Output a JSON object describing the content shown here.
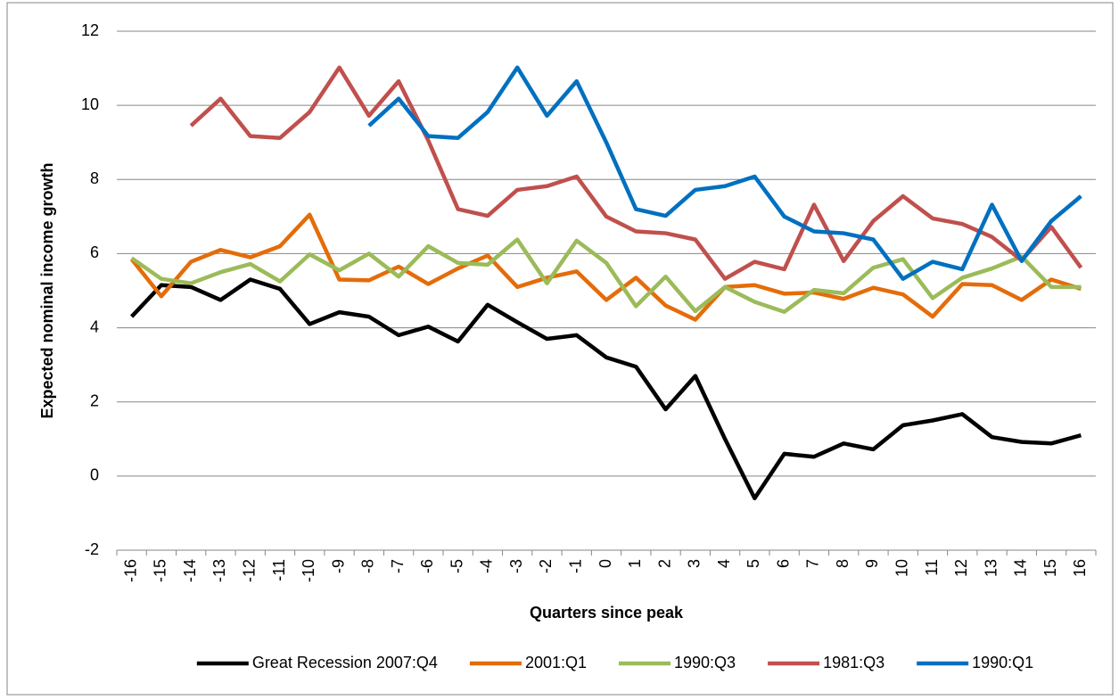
{
  "chart_data": {
    "type": "line",
    "x_label": "Quarters since peak",
    "y_label": "Expected nominal income growth",
    "categories": [
      "-16",
      "-15",
      "-14",
      "-13",
      "-12",
      "-11",
      "-10",
      "-9",
      "-8",
      "-7",
      "-6",
      "-5",
      "-4",
      "-3",
      "-2",
      "-1",
      "0",
      "1",
      "2",
      "3",
      "4",
      "5",
      "6",
      "7",
      "8",
      "9",
      "10",
      "11",
      "12",
      "13",
      "14",
      "15",
      "16"
    ],
    "ylim": [
      -2,
      12
    ],
    "yticks": [
      -2,
      0,
      2,
      4,
      6,
      8,
      10,
      12
    ],
    "grid": true,
    "legend": "bottom",
    "series": [
      {
        "name": "Great Recession 2007:Q4",
        "color": "#000000",
        "values": [
          4.3,
          5.15,
          5.1,
          4.75,
          5.3,
          5.05,
          4.1,
          4.42,
          4.3,
          3.8,
          4.03,
          3.63,
          4.62,
          4.15,
          3.7,
          3.8,
          3.2,
          2.95,
          1.8,
          2.7,
          1.0,
          -0.6,
          0.6,
          0.52,
          0.88,
          0.72,
          1.37,
          1.5,
          1.67,
          1.05,
          0.92,
          0.88,
          1.1
        ]
      },
      {
        "name": "2001:Q1",
        "color": "#E46C0A",
        "values": [
          5.85,
          4.85,
          5.78,
          6.1,
          5.9,
          6.2,
          7.05,
          5.3,
          5.28,
          5.65,
          5.18,
          5.6,
          5.95,
          5.1,
          5.35,
          5.52,
          4.75,
          5.35,
          4.6,
          4.22,
          5.1,
          5.15,
          4.92,
          4.95,
          4.78,
          5.08,
          4.9,
          4.3,
          5.18,
          5.15,
          4.75,
          5.3,
          5.05
        ]
      },
      {
        "name": "1990:Q3",
        "color": "#9BBB59",
        "values": [
          5.88,
          5.32,
          5.2,
          5.5,
          5.72,
          5.25,
          5.98,
          5.55,
          6.0,
          5.38,
          6.2,
          5.75,
          5.7,
          6.38,
          5.2,
          6.35,
          5.75,
          4.58,
          5.38,
          4.45,
          5.1,
          4.7,
          4.43,
          5.02,
          4.93,
          5.62,
          5.85,
          4.8,
          5.35,
          5.6,
          5.92,
          5.1,
          5.1
        ]
      },
      {
        "name": "1981:Q3",
        "color": "#C0504D",
        "values": [
          null,
          null,
          9.45,
          10.18,
          9.17,
          9.12,
          9.82,
          11.02,
          9.72,
          10.65,
          9.05,
          7.2,
          7.02,
          7.72,
          7.82,
          8.08,
          7.0,
          6.6,
          6.55,
          6.38,
          5.32,
          5.78,
          5.58,
          7.32,
          5.8,
          6.88,
          7.55,
          6.95,
          6.8,
          6.45,
          5.82,
          6.72,
          5.62
        ]
      },
      {
        "name": "1990:Q1",
        "color": "#0070C0",
        "values": [
          null,
          null,
          null,
          null,
          null,
          null,
          null,
          null,
          9.45,
          10.18,
          9.17,
          9.12,
          9.82,
          11.02,
          9.72,
          10.65,
          9.0,
          7.2,
          7.02,
          7.72,
          7.82,
          8.08,
          7.0,
          6.6,
          6.55,
          6.38,
          5.32,
          5.78,
          5.58,
          7.32,
          5.8,
          6.88,
          7.55
        ]
      }
    ]
  }
}
